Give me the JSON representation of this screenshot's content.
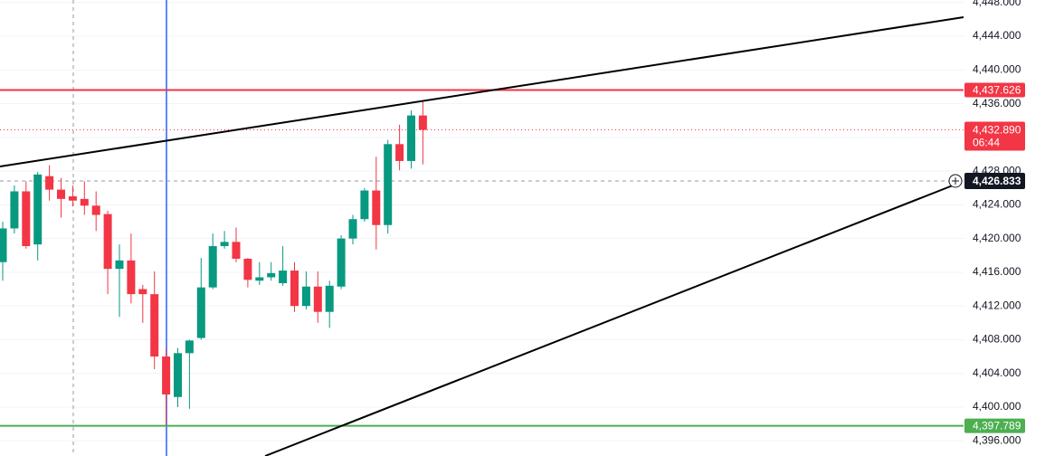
{
  "chart_data": {
    "type": "candlestick",
    "up_color": "#089981",
    "down_color": "#f23645",
    "grid": true,
    "ylim": [
      4394.2,
      4448.3
    ],
    "yticks": [
      {
        "value": 4396,
        "label": "4,396.000"
      },
      {
        "value": 4400,
        "label": "4,400.000"
      },
      {
        "value": 4404,
        "label": "4,404.000"
      },
      {
        "value": 4408,
        "label": "4,408.000"
      },
      {
        "value": 4412,
        "label": "4,412.000"
      },
      {
        "value": 4416,
        "label": "4,416.000"
      },
      {
        "value": 4420,
        "label": "4,420.000"
      },
      {
        "value": 4424,
        "label": "4,424.000"
      },
      {
        "value": 4428,
        "label": "4,428.000"
      },
      {
        "value": 4432,
        "label": "4,432.000"
      },
      {
        "value": 4436,
        "label": "4,436.000"
      },
      {
        "value": 4440,
        "label": "4,440.000"
      },
      {
        "value": 4444,
        "label": "4,444.000"
      },
      {
        "value": 4448,
        "label": "4,448.000"
      }
    ],
    "candles": [
      {
        "open": 4417.2,
        "high": 4422.0,
        "low": 4415.0,
        "close": 4421.2
      },
      {
        "open": 4421.2,
        "high": 4426.3,
        "low": 4420.6,
        "close": 4425.6
      },
      {
        "open": 4425.6,
        "high": 4426.8,
        "low": 4418.8,
        "close": 4419.1
      },
      {
        "open": 4419.3,
        "high": 4427.9,
        "low": 4417.4,
        "close": 4427.6
      },
      {
        "open": 4427.4,
        "high": 4428.7,
        "low": 4424.5,
        "close": 4425.8
      },
      {
        "open": 4425.8,
        "high": 4427.2,
        "low": 4422.5,
        "close": 4424.7
      },
      {
        "open": 4425.0,
        "high": 4426.3,
        "low": 4423.8,
        "close": 4424.5
      },
      {
        "open": 4424.7,
        "high": 4426.8,
        "low": 4422.8,
        "close": 4423.9
      },
      {
        "open": 4423.9,
        "high": 4425.6,
        "low": 4420.9,
        "close": 4422.8
      },
      {
        "open": 4422.9,
        "high": 4423.3,
        "low": 4413.4,
        "close": 4416.4
      },
      {
        "open": 4416.4,
        "high": 4419.3,
        "low": 4410.7,
        "close": 4417.4
      },
      {
        "open": 4417.4,
        "high": 4420.6,
        "low": 4412.3,
        "close": 4413.4
      },
      {
        "open": 4414.0,
        "high": 4414.5,
        "low": 4410.0,
        "close": 4413.4
      },
      {
        "open": 4413.4,
        "high": 4416.1,
        "low": 4404.5,
        "close": 4406.0
      },
      {
        "open": 4406.0,
        "high": 4407.0,
        "low": 4397.8,
        "close": 4401.5
      },
      {
        "open": 4401.2,
        "high": 4407.0,
        "low": 4400.0,
        "close": 4406.4
      },
      {
        "open": 4406.4,
        "high": 4408.0,
        "low": 4399.8,
        "close": 4407.9
      },
      {
        "open": 4408.2,
        "high": 4417.7,
        "low": 4408.0,
        "close": 4414.2
      },
      {
        "open": 4414.2,
        "high": 4420.6,
        "low": 4414.0,
        "close": 4419.1
      },
      {
        "open": 4419.1,
        "high": 4420.9,
        "low": 4418.8,
        "close": 4419.6
      },
      {
        "open": 4419.6,
        "high": 4421.3,
        "low": 4417.2,
        "close": 4417.6
      },
      {
        "open": 4417.6,
        "high": 4417.7,
        "low": 4414.2,
        "close": 4415.1
      },
      {
        "open": 4415.0,
        "high": 4417.2,
        "low": 4414.5,
        "close": 4415.4
      },
      {
        "open": 4415.4,
        "high": 4417.2,
        "low": 4415.0,
        "close": 4415.9
      },
      {
        "open": 4414.7,
        "high": 4419.1,
        "low": 4414.4,
        "close": 4416.2
      },
      {
        "open": 4416.2,
        "high": 4417.2,
        "low": 4411.3,
        "close": 4412.0
      },
      {
        "open": 4412.0,
        "high": 4416.1,
        "low": 4411.6,
        "close": 4414.3
      },
      {
        "open": 4414.3,
        "high": 4416.1,
        "low": 4410.0,
        "close": 4411.3
      },
      {
        "open": 4411.3,
        "high": 4415.0,
        "low": 4409.4,
        "close": 4414.4
      },
      {
        "open": 4414.3,
        "high": 4420.4,
        "low": 4414.0,
        "close": 4420.0
      },
      {
        "open": 4420.0,
        "high": 4422.8,
        "low": 4419.3,
        "close": 4422.3
      },
      {
        "open": 4422.3,
        "high": 4426.0,
        "low": 4422.0,
        "close": 4425.7
      },
      {
        "open": 4425.7,
        "high": 4429.7,
        "low": 4418.7,
        "close": 4421.6
      },
      {
        "open": 4421.6,
        "high": 4431.7,
        "low": 4420.6,
        "close": 4431.2
      },
      {
        "open": 4431.2,
        "high": 4433.5,
        "low": 4428.1,
        "close": 4429.2
      },
      {
        "open": 4429.2,
        "high": 4435.2,
        "low": 4428.3,
        "close": 4434.6
      },
      {
        "open": 4434.6,
        "high": 4436.2,
        "low": 4428.8,
        "close": 4432.89
      }
    ],
    "levels": [
      {
        "value": 4437.626,
        "label": "4,437.626",
        "color": "#f23645"
      },
      {
        "value": 4397.789,
        "label": "4,397.789",
        "color": "#4caf50"
      }
    ],
    "last_price": {
      "value": 4432.89,
      "label": "4,432.890",
      "countdown": "06:44",
      "color": "#f23645"
    },
    "crosshair": {
      "value": 4426.833,
      "label": "4,426.833"
    }
  }
}
